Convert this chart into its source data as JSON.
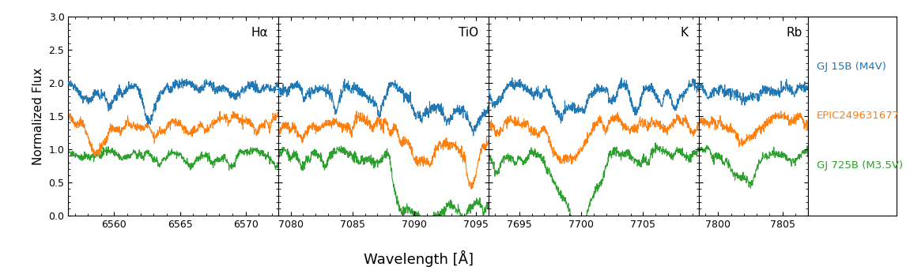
{
  "panels": [
    {
      "label": "Hα",
      "xmin": 6556.5,
      "xmax": 6572.5,
      "xticks": [
        6560,
        6565,
        6570
      ]
    },
    {
      "label": "TiO",
      "xmin": 7079.0,
      "xmax": 7096.0,
      "xticks": [
        7080,
        7085,
        7090,
        7095
      ]
    },
    {
      "label": "K",
      "xmin": 7692.5,
      "xmax": 7709.5,
      "xticks": [
        7695,
        7700,
        7705
      ]
    },
    {
      "label": "Rb",
      "xmin": 7798.5,
      "xmax": 7807.0,
      "xticks": [
        7800,
        7805
      ]
    }
  ],
  "ylim": [
    0.0,
    3.0
  ],
  "yticks": [
    0.0,
    0.5,
    1.0,
    1.5,
    2.0,
    2.5,
    3.0
  ],
  "ylabel": "Normalized Flux",
  "xlabel": "Wavelength [Å]",
  "colors": {
    "blue": "#1f77b4",
    "orange": "#ff7f0e",
    "green": "#2ca02c"
  },
  "legend_entries": [
    {
      "label": "GJ 15B (M4V)",
      "color": "#1f77b4"
    },
    {
      "label": "EPIC249631677",
      "color": "#ff7f0e"
    },
    {
      "label": "GJ 725B (M3.5V)",
      "color": "#2ca02c"
    }
  ],
  "base_flux": {
    "blue": 2.0,
    "orange": 1.5,
    "green": 1.0
  }
}
